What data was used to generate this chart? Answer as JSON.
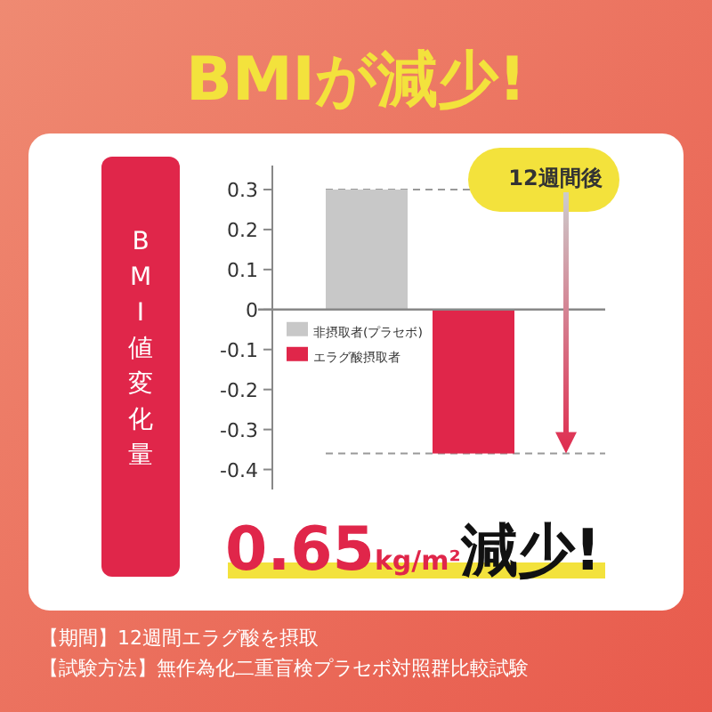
{
  "chart_data": {
    "type": "bar",
    "title": "BMIが減少!",
    "ylabel": "BMI値変化量",
    "categories": [
      null,
      null
    ],
    "series": [
      {
        "name": "非摂取者(プラセボ)",
        "color": "#c8c8c8",
        "values": [
          0.3,
          null
        ]
      },
      {
        "name": "エラグ酸摂取者",
        "color": "#e0264a",
        "values": [
          null,
          -0.36
        ]
      }
    ],
    "ylim": [
      -0.45,
      0.36
    ],
    "yticks": [
      0.3,
      0.2,
      0.1,
      0,
      -0.1,
      -0.2,
      -0.3,
      -0.4
    ],
    "grid": false,
    "legend": "left",
    "ref_lines": [
      {
        "axis": "y",
        "value": 0.3,
        "line_style": "dashed",
        "color": "#999999"
      },
      {
        "axis": "y",
        "value": -0.36,
        "line_style": "dashed",
        "color": "#999999"
      }
    ],
    "annotations": [
      "12週間後",
      "0.65kg/m²減少!",
      "【期間】12週間エラグ酸を摂取",
      "【試験方法】無作為化二重盲検プラセボ対照群比較試験"
    ]
  }
}
